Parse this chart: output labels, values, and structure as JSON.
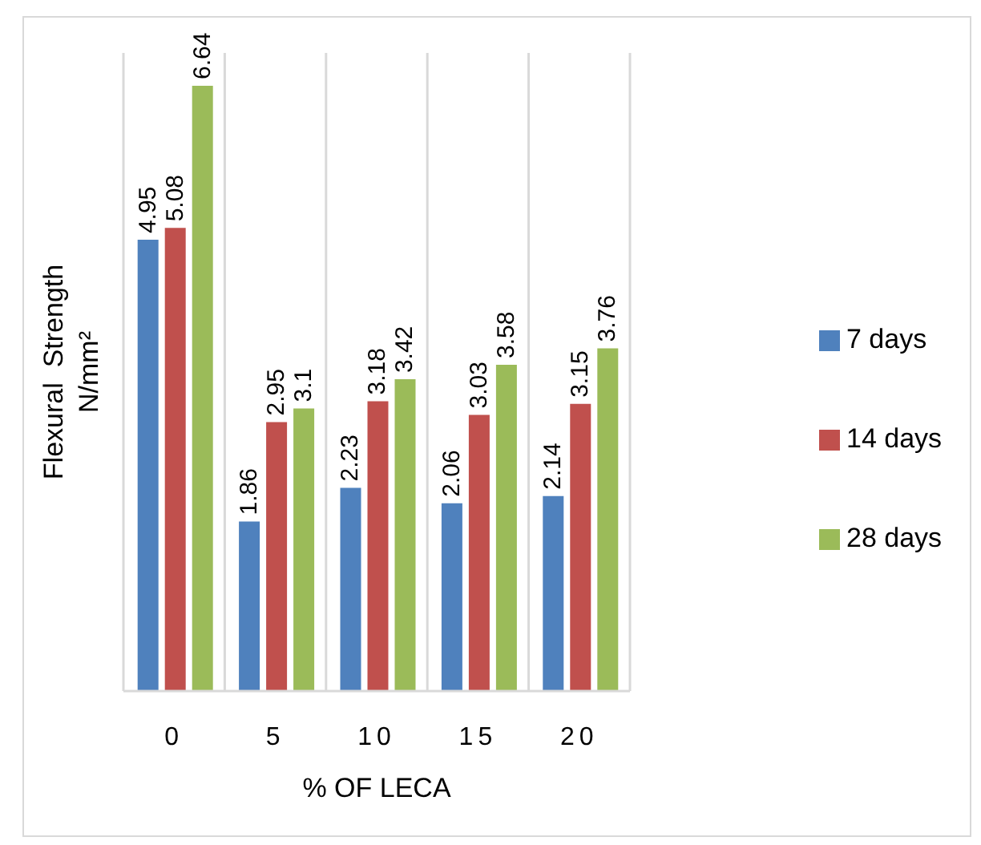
{
  "chart_data": {
    "type": "bar",
    "xlabel": "% OF LECA",
    "ylabel": "Flexural  Strength\nN/mm²",
    "categories": [
      "0",
      "5",
      "10",
      "15",
      "20"
    ],
    "series": [
      {
        "name": "7 days",
        "color": "#4f81bd",
        "values": [
          4.95,
          1.86,
          2.23,
          2.06,
          2.14
        ]
      },
      {
        "name": "14 days",
        "color": "#c0504d",
        "values": [
          5.08,
          2.95,
          3.18,
          3.03,
          3.15
        ]
      },
      {
        "name": "28 days",
        "color": "#9bbb59",
        "values": [
          6.64,
          3.1,
          3.42,
          3.58,
          3.76
        ]
      }
    ],
    "ylim": [
      0,
      7
    ],
    "data_labels": true,
    "grid": "x",
    "legend": "right",
    "tick_labels": "x"
  }
}
